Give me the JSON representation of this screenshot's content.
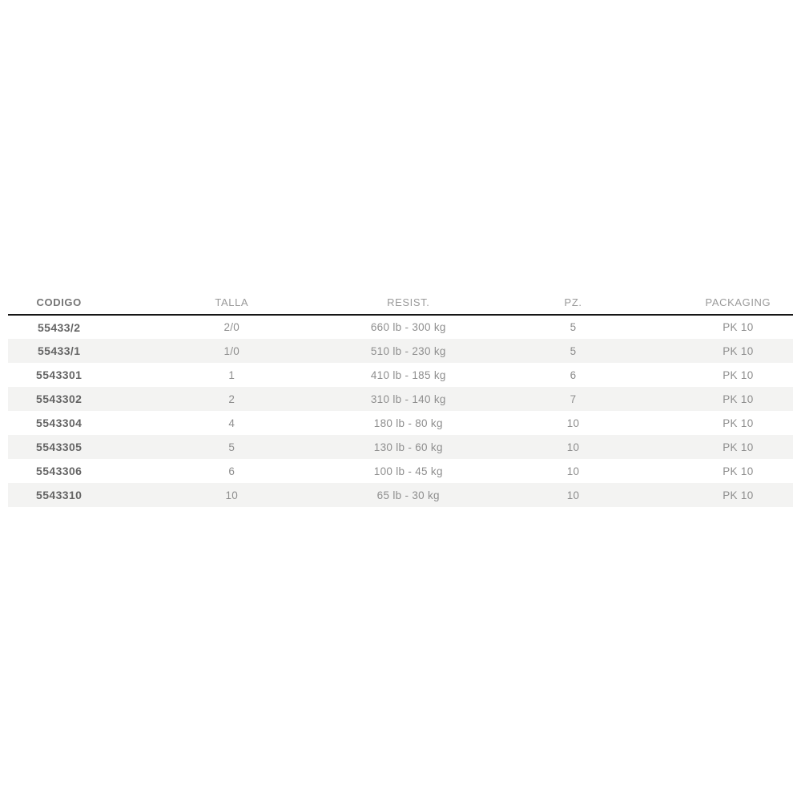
{
  "page": {
    "background_color": "#ffffff"
  },
  "style": {
    "stripe_color": "#f3f3f2",
    "header_rule_color": "#161616",
    "header_text_color": "#9a9a9a",
    "header_strong_text_color": "#757575",
    "cell_text_color": "#8e8e8e",
    "code_text_color": "#656565"
  },
  "chart_data": {
    "type": "table",
    "title": "",
    "columns": [
      {
        "key": "codigo",
        "label": "CODIGO",
        "emphasis": true
      },
      {
        "key": "talla",
        "label": "TALLA",
        "emphasis": false
      },
      {
        "key": "resist",
        "label": "RESIST.",
        "emphasis": false
      },
      {
        "key": "pz",
        "label": "PZ.",
        "emphasis": false
      },
      {
        "key": "packaging",
        "label": "PACKAGING",
        "emphasis": false
      }
    ],
    "rows": [
      {
        "codigo": "55433/2",
        "talla": "2/0",
        "resist": "660 lb - 300 kg",
        "pz": "5",
        "packaging": "PK 10"
      },
      {
        "codigo": "55433/1",
        "talla": "1/0",
        "resist": "510 lb - 230 kg",
        "pz": "5",
        "packaging": "PK 10"
      },
      {
        "codigo": "5543301",
        "talla": "1",
        "resist": "410 lb - 185 kg",
        "pz": "6",
        "packaging": "PK 10"
      },
      {
        "codigo": "5543302",
        "talla": "2",
        "resist": "310 lb - 140 kg",
        "pz": "7",
        "packaging": "PK 10"
      },
      {
        "codigo": "5543304",
        "talla": "4",
        "resist": "180 lb - 80 kg",
        "pz": "10",
        "packaging": "PK 10"
      },
      {
        "codigo": "5543305",
        "talla": "5",
        "resist": "130 lb - 60 kg",
        "pz": "10",
        "packaging": "PK 10"
      },
      {
        "codigo": "5543306",
        "talla": "6",
        "resist": "100 lb - 45 kg",
        "pz": "10",
        "packaging": "PK 10"
      },
      {
        "codigo": "5543310",
        "talla": "10",
        "resist": "65 lb - 30 kg",
        "pz": "10",
        "packaging": "PK 10"
      }
    ],
    "layout": {
      "zebra_striping": true,
      "first_row_background": "white",
      "header_rule": "heavy-dark-line"
    }
  }
}
